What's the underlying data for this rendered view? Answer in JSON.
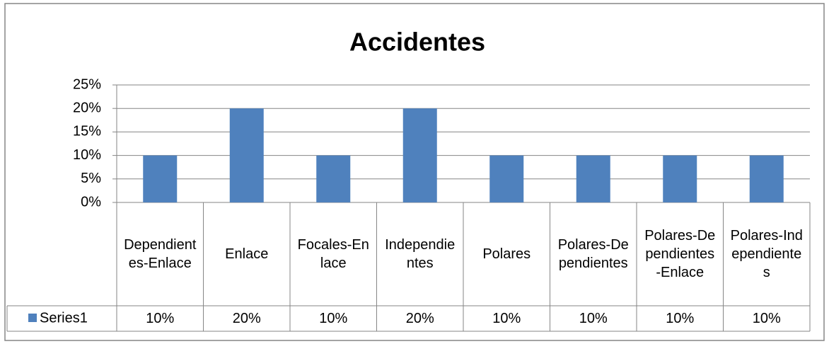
{
  "chart_data": {
    "type": "bar",
    "title": "Accidentes",
    "categories": [
      "Dependientes-Enlace",
      "Enlace",
      "Focales-Enlace",
      "Independientes",
      "Polares",
      "Polares-Dependientes",
      "Polares-Dependientes-Enlace",
      "Polares-Independientes"
    ],
    "series": [
      {
        "name": "Series1",
        "color": "#4f81bd",
        "values": [
          10,
          20,
          10,
          20,
          10,
          10,
          10,
          10
        ],
        "value_labels": [
          "10%",
          "20%",
          "10%",
          "20%",
          "10%",
          "10%",
          "10%",
          "10%"
        ]
      }
    ],
    "ylim": [
      0,
      25
    ],
    "yticks": [
      {
        "value": 0,
        "label": "0%"
      },
      {
        "value": 5,
        "label": "5%"
      },
      {
        "value": 10,
        "label": "10%"
      },
      {
        "value": 15,
        "label": "15%"
      },
      {
        "value": 20,
        "label": "20%"
      },
      {
        "value": 25,
        "label": "25%"
      }
    ],
    "grid": true
  }
}
